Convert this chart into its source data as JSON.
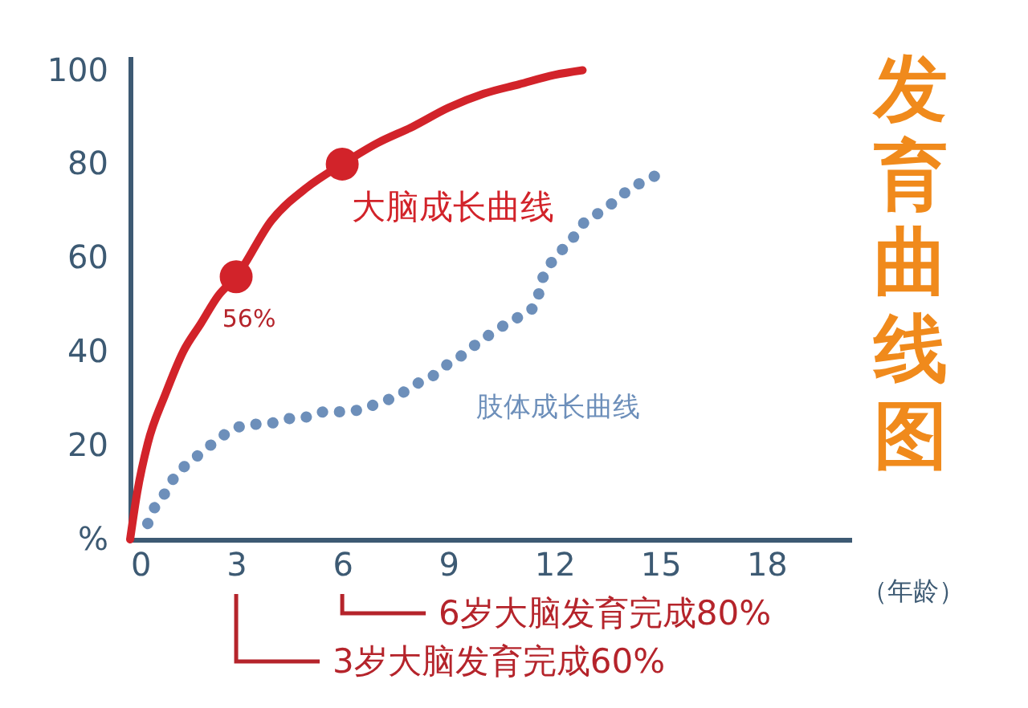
{
  "chart_data": {
    "type": "line",
    "title": "发育曲线图",
    "xlabel": "（年龄）",
    "xlim": [
      0,
      20.4
    ],
    "xticks": [
      0,
      3,
      6,
      9,
      12,
      15,
      18
    ],
    "ylim": [
      0,
      103
    ],
    "yticks": [
      {
        "value": 0,
        "label": "%"
      },
      20,
      40,
      60,
      80,
      100
    ],
    "grid": false,
    "legend": false,
    "series": [
      {
        "name": "大脑成长曲线",
        "type": "line",
        "color": "#d2232a",
        "line_style": "solid",
        "x": [
          0,
          0.2,
          0.5,
          1,
          1.5,
          2,
          2.5,
          3,
          4,
          5,
          6,
          7,
          8,
          9,
          10,
          11,
          12,
          12.8
        ],
        "values": [
          0,
          10,
          20.5,
          31,
          40,
          46,
          52,
          56,
          68,
          75,
          80,
          84.5,
          88,
          92,
          95,
          97,
          99,
          100
        ]
      },
      {
        "type": "scatter",
        "color": "#d2232a",
        "marker": "circle",
        "x": [
          3,
          6
        ],
        "values": [
          56,
          80
        ]
      },
      {
        "name": "肢体成长曲线",
        "type": "line",
        "color": "#6d8fba",
        "line_style": "dotted",
        "x": [
          0.5,
          0.7,
          1,
          1.3,
          1.7,
          2.1,
          2.5,
          3,
          3.5,
          4,
          4.6,
          5.1,
          5.5,
          6.1,
          6.6,
          7.1,
          7.6,
          8,
          8.5,
          8.9,
          9.4,
          9.8,
          10.2,
          10.7,
          11.1,
          11.5,
          11.6,
          11.8,
          12.1,
          12.5,
          12.8,
          13.2,
          13.7,
          14.1,
          14.5,
          15
        ],
        "values": [
          3.4,
          6.9,
          10,
          13.8,
          16.5,
          19,
          21.4,
          23.8,
          24.5,
          24.8,
          25.9,
          26.2,
          27.2,
          27.2,
          27.9,
          29.3,
          30.7,
          32.8,
          34.5,
          36.9,
          39.3,
          41.7,
          43.8,
          46.2,
          47.9,
          50.3,
          54,
          57.6,
          60.7,
          64,
          67.2,
          69.3,
          72,
          74.5,
          76.2,
          78
        ]
      }
    ],
    "annotations": [
      {
        "text": "56%",
        "x": 3,
        "y": 56
      },
      "6岁大脑发育完成80%",
      "3岁大脑发育完成60%"
    ]
  }
}
